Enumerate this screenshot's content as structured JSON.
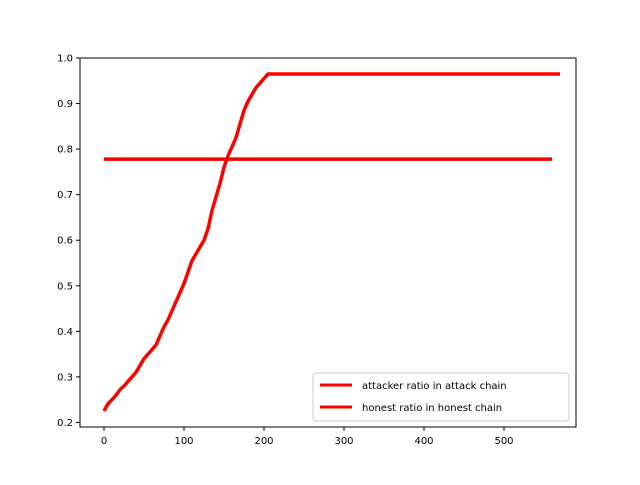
{
  "chart_data": {
    "type": "line",
    "title": "",
    "xlabel": "",
    "ylabel": "",
    "xlim": [
      -30,
      590
    ],
    "ylim": [
      0.19,
      1.0
    ],
    "x_ticks": [
      0,
      100,
      200,
      300,
      400,
      500
    ],
    "y_ticks": [
      0.2,
      0.3,
      0.4,
      0.5,
      0.6,
      0.7,
      0.8,
      0.9,
      1.0
    ],
    "x_tick_labels": [
      "0",
      "100",
      "200",
      "300",
      "400",
      "500"
    ],
    "y_tick_labels": [
      "0.2",
      "0.3",
      "0.4",
      "0.5",
      "0.6",
      "0.7",
      "0.8",
      "0.9",
      "1.0"
    ],
    "grid": false,
    "legend_position": "lower-right",
    "series": [
      {
        "name": "attacker ratio in attack chain",
        "color": "#ff0000",
        "points": [
          [
            0,
            0.225
          ],
          [
            3,
            0.235
          ],
          [
            6,
            0.243
          ],
          [
            10,
            0.25
          ],
          [
            15,
            0.26
          ],
          [
            20,
            0.272
          ],
          [
            25,
            0.28
          ],
          [
            30,
            0.29
          ],
          [
            35,
            0.3
          ],
          [
            40,
            0.31
          ],
          [
            45,
            0.325
          ],
          [
            50,
            0.34
          ],
          [
            55,
            0.35
          ],
          [
            60,
            0.36
          ],
          [
            65,
            0.37
          ],
          [
            70,
            0.39
          ],
          [
            75,
            0.41
          ],
          [
            80,
            0.425
          ],
          [
            85,
            0.445
          ],
          [
            90,
            0.465
          ],
          [
            95,
            0.485
          ],
          [
            100,
            0.505
          ],
          [
            105,
            0.53
          ],
          [
            110,
            0.555
          ],
          [
            115,
            0.57
          ],
          [
            120,
            0.585
          ],
          [
            125,
            0.6
          ],
          [
            130,
            0.625
          ],
          [
            135,
            0.665
          ],
          [
            140,
            0.695
          ],
          [
            145,
            0.725
          ],
          [
            150,
            0.76
          ],
          [
            155,
            0.785
          ],
          [
            160,
            0.805
          ],
          [
            165,
            0.825
          ],
          [
            170,
            0.855
          ],
          [
            175,
            0.885
          ],
          [
            180,
            0.905
          ],
          [
            185,
            0.92
          ],
          [
            190,
            0.935
          ],
          [
            195,
            0.945
          ],
          [
            200,
            0.955
          ],
          [
            205,
            0.965
          ],
          [
            570,
            0.965
          ]
        ]
      },
      {
        "name": "honest ratio in honest chain",
        "color": "#ff0000",
        "points": [
          [
            0,
            0.778
          ],
          [
            560,
            0.778
          ]
        ]
      }
    ]
  }
}
